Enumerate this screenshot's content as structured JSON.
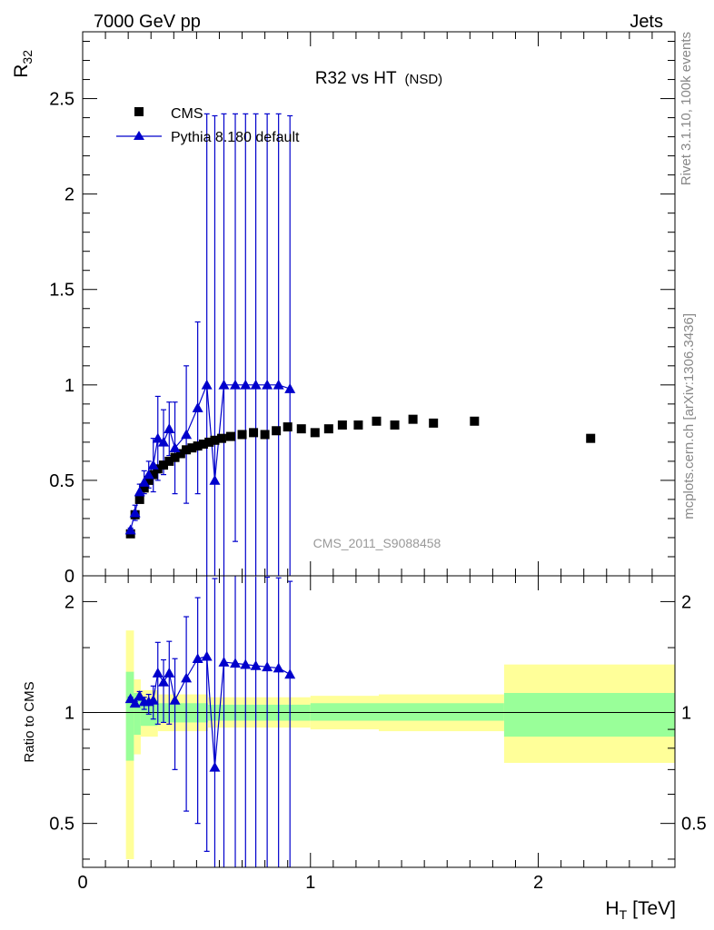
{
  "header": {
    "left_label": "7000 GeV pp",
    "right_label": "Jets"
  },
  "side_labels": {
    "upper": "Rivet 3.1.10,  100k events",
    "lower": "mcplots.cern.ch [arXiv:1306.3436]"
  },
  "colors": {
    "data": "#000000",
    "mc": "#0000cc",
    "band_inner": "#99ff99",
    "band_outer": "#ffff99"
  },
  "chart_data": [
    {
      "type": "scatter",
      "title": "R32 vs HT",
      "title_suffix": "(NSD)",
      "ylabel": "R",
      "ylabel_sub": "32",
      "watermark": "CMS_2011_S9088458",
      "xlim": [
        0,
        2.6
      ],
      "ylim": [
        0,
        2.85
      ],
      "yticks": [
        0,
        0.5,
        1,
        1.5,
        2,
        2.5
      ],
      "yticklabels": [
        "0",
        "0.5",
        "1",
        "1.5",
        "2",
        "2.5"
      ],
      "legend": {
        "position": "top-left",
        "entries": [
          "CMS",
          "Pythia 8.180 default"
        ]
      },
      "series": [
        {
          "name": "CMS",
          "marker": "square",
          "x": [
            0.21,
            0.23,
            0.25,
            0.27,
            0.29,
            0.31,
            0.33,
            0.355,
            0.38,
            0.405,
            0.43,
            0.455,
            0.48,
            0.505,
            0.53,
            0.555,
            0.58,
            0.61,
            0.65,
            0.7,
            0.75,
            0.8,
            0.85,
            0.9,
            0.96,
            1.02,
            1.08,
            1.14,
            1.21,
            1.29,
            1.37,
            1.45,
            1.54,
            1.72,
            2.23
          ],
          "y": [
            0.22,
            0.32,
            0.4,
            0.46,
            0.5,
            0.53,
            0.56,
            0.58,
            0.6,
            0.62,
            0.64,
            0.66,
            0.67,
            0.68,
            0.69,
            0.7,
            0.71,
            0.72,
            0.73,
            0.74,
            0.75,
            0.74,
            0.76,
            0.78,
            0.77,
            0.75,
            0.77,
            0.79,
            0.79,
            0.81,
            0.79,
            0.82,
            0.8,
            0.81,
            0.72
          ]
        },
        {
          "name": "Pythia 8.180 default",
          "marker": "triangle",
          "x": [
            0.21,
            0.23,
            0.25,
            0.27,
            0.29,
            0.31,
            0.33,
            0.355,
            0.38,
            0.405,
            0.455,
            0.505,
            0.545,
            0.58,
            0.62,
            0.67,
            0.715,
            0.76,
            0.81,
            0.86,
            0.91
          ],
          "y": [
            0.24,
            0.33,
            0.44,
            0.49,
            0.53,
            0.58,
            0.72,
            0.7,
            0.77,
            0.67,
            0.74,
            0.88,
            1.0,
            0.5,
            1.0,
            1.0,
            1.0,
            1.0,
            1.0,
            1.0,
            0.98
          ],
          "err_up": [
            0.01,
            0.04,
            0.04,
            0.06,
            0.07,
            0.14,
            0.22,
            0.17,
            0.14,
            0.24,
            0.36,
            0.45,
            1.42,
            1.91,
            1.42,
            1.42,
            1.42,
            1.42,
            1.42,
            1.42,
            1.43
          ],
          "err_down": [
            0.01,
            0.04,
            0.04,
            0.06,
            0.07,
            0.14,
            0.22,
            0.17,
            0.14,
            0.24,
            0.36,
            0.45,
            1.0,
            0.5,
            1.0,
            0.82,
            1.0,
            1.0,
            1.0,
            1.0,
            0.98
          ]
        }
      ]
    },
    {
      "type": "scatter",
      "xlabel": "H",
      "xlabel_sub": "T",
      "xlabel_unit": "[TeV]",
      "ylabel": "Ratio to CMS",
      "xlim": [
        0,
        2.6
      ],
      "ylim": [
        0.38,
        2.35
      ],
      "log_y": true,
      "xticks": [
        0,
        1,
        2
      ],
      "xticklabels": [
        "0",
        "1",
        "2"
      ],
      "yticks": [
        0.5,
        1,
        2
      ],
      "yticklabels": [
        "0.5",
        "1",
        "2"
      ],
      "reference_line": 1,
      "bands": [
        {
          "x0": 0.19,
          "x1": 0.225,
          "in_lo": 0.74,
          "in_hi": 1.29,
          "out_lo": 0.4,
          "out_hi": 1.67
        },
        {
          "x0": 0.225,
          "x1": 0.255,
          "in_lo": 0.87,
          "in_hi": 1.13,
          "out_lo": 0.77,
          "out_hi": 1.23
        },
        {
          "x0": 0.255,
          "x1": 0.33,
          "in_lo": 0.92,
          "in_hi": 1.08,
          "out_lo": 0.86,
          "out_hi": 1.15
        },
        {
          "x0": 0.33,
          "x1": 0.55,
          "in_lo": 0.94,
          "in_hi": 1.06,
          "out_lo": 0.89,
          "out_hi": 1.12
        },
        {
          "x0": 0.55,
          "x1": 1.0,
          "in_lo": 0.95,
          "in_hi": 1.05,
          "out_lo": 0.91,
          "out_hi": 1.1
        },
        {
          "x0": 1.0,
          "x1": 1.3,
          "in_lo": 0.95,
          "in_hi": 1.06,
          "out_lo": 0.9,
          "out_hi": 1.11
        },
        {
          "x0": 1.3,
          "x1": 1.85,
          "in_lo": 0.95,
          "in_hi": 1.06,
          "out_lo": 0.89,
          "out_hi": 1.12
        },
        {
          "x0": 1.85,
          "x1": 2.6,
          "in_lo": 0.86,
          "in_hi": 1.13,
          "out_lo": 0.73,
          "out_hi": 1.35
        }
      ],
      "series": [
        {
          "name": "Pythia 8.180 default",
          "marker": "triangle",
          "x": [
            0.21,
            0.23,
            0.25,
            0.27,
            0.29,
            0.31,
            0.33,
            0.355,
            0.38,
            0.405,
            0.455,
            0.505,
            0.545,
            0.58,
            0.62,
            0.67,
            0.715,
            0.76,
            0.81,
            0.86,
            0.91
          ],
          "y": [
            1.09,
            1.06,
            1.11,
            1.07,
            1.07,
            1.08,
            1.28,
            1.21,
            1.28,
            1.08,
            1.24,
            1.4,
            1.42,
            0.71,
            1.37,
            1.36,
            1.35,
            1.34,
            1.33,
            1.32,
            1.27
          ],
          "err_up": [
            0.01,
            0.01,
            0.03,
            0.03,
            0.05,
            0.1,
            0.27,
            0.18,
            0.28,
            0.32,
            0.58,
            0.65,
            1.0,
            1.6,
            1.0,
            1.0,
            1.0,
            1.0,
            1.0,
            1.0,
            1.0
          ],
          "err_down": [
            0.01,
            0.01,
            0.03,
            0.05,
            0.08,
            0.12,
            0.35,
            0.27,
            0.35,
            0.38,
            0.7,
            0.9,
            1.0,
            0.7,
            1.0,
            1.0,
            1.0,
            1.0,
            1.0,
            1.0,
            1.0
          ]
        }
      ]
    }
  ]
}
